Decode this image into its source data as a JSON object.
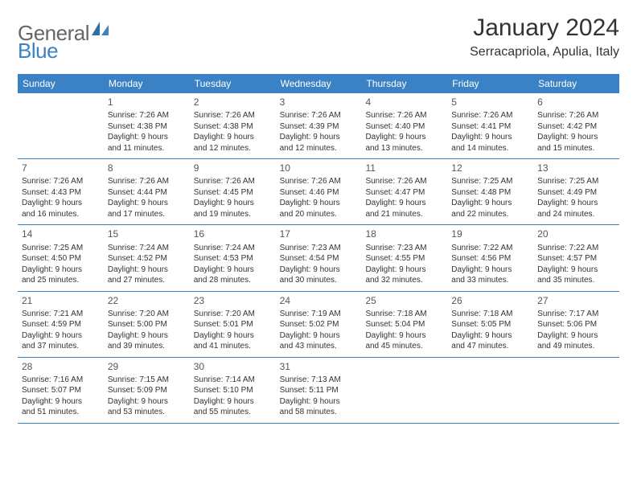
{
  "logo": {
    "text1": "General",
    "text2": "Blue"
  },
  "title": "January 2024",
  "location": "Serracapriola, Apulia, Italy",
  "colors": {
    "header_bg": "#3b82c4",
    "header_text": "#ffffff",
    "body_text": "#333333",
    "logo_gray": "#666666",
    "logo_blue": "#3b82c4",
    "border": "#3b82c4",
    "background": "#ffffff"
  },
  "weekdays": [
    "Sunday",
    "Monday",
    "Tuesday",
    "Wednesday",
    "Thursday",
    "Friday",
    "Saturday"
  ],
  "weeks": [
    [
      {
        "n": "",
        "l1": "",
        "l2": "",
        "l3": "",
        "l4": ""
      },
      {
        "n": "1",
        "l1": "Sunrise: 7:26 AM",
        "l2": "Sunset: 4:38 PM",
        "l3": "Daylight: 9 hours",
        "l4": "and 11 minutes."
      },
      {
        "n": "2",
        "l1": "Sunrise: 7:26 AM",
        "l2": "Sunset: 4:38 PM",
        "l3": "Daylight: 9 hours",
        "l4": "and 12 minutes."
      },
      {
        "n": "3",
        "l1": "Sunrise: 7:26 AM",
        "l2": "Sunset: 4:39 PM",
        "l3": "Daylight: 9 hours",
        "l4": "and 12 minutes."
      },
      {
        "n": "4",
        "l1": "Sunrise: 7:26 AM",
        "l2": "Sunset: 4:40 PM",
        "l3": "Daylight: 9 hours",
        "l4": "and 13 minutes."
      },
      {
        "n": "5",
        "l1": "Sunrise: 7:26 AM",
        "l2": "Sunset: 4:41 PM",
        "l3": "Daylight: 9 hours",
        "l4": "and 14 minutes."
      },
      {
        "n": "6",
        "l1": "Sunrise: 7:26 AM",
        "l2": "Sunset: 4:42 PM",
        "l3": "Daylight: 9 hours",
        "l4": "and 15 minutes."
      }
    ],
    [
      {
        "n": "7",
        "l1": "Sunrise: 7:26 AM",
        "l2": "Sunset: 4:43 PM",
        "l3": "Daylight: 9 hours",
        "l4": "and 16 minutes."
      },
      {
        "n": "8",
        "l1": "Sunrise: 7:26 AM",
        "l2": "Sunset: 4:44 PM",
        "l3": "Daylight: 9 hours",
        "l4": "and 17 minutes."
      },
      {
        "n": "9",
        "l1": "Sunrise: 7:26 AM",
        "l2": "Sunset: 4:45 PM",
        "l3": "Daylight: 9 hours",
        "l4": "and 19 minutes."
      },
      {
        "n": "10",
        "l1": "Sunrise: 7:26 AM",
        "l2": "Sunset: 4:46 PM",
        "l3": "Daylight: 9 hours",
        "l4": "and 20 minutes."
      },
      {
        "n": "11",
        "l1": "Sunrise: 7:26 AM",
        "l2": "Sunset: 4:47 PM",
        "l3": "Daylight: 9 hours",
        "l4": "and 21 minutes."
      },
      {
        "n": "12",
        "l1": "Sunrise: 7:25 AM",
        "l2": "Sunset: 4:48 PM",
        "l3": "Daylight: 9 hours",
        "l4": "and 22 minutes."
      },
      {
        "n": "13",
        "l1": "Sunrise: 7:25 AM",
        "l2": "Sunset: 4:49 PM",
        "l3": "Daylight: 9 hours",
        "l4": "and 24 minutes."
      }
    ],
    [
      {
        "n": "14",
        "l1": "Sunrise: 7:25 AM",
        "l2": "Sunset: 4:50 PM",
        "l3": "Daylight: 9 hours",
        "l4": "and 25 minutes."
      },
      {
        "n": "15",
        "l1": "Sunrise: 7:24 AM",
        "l2": "Sunset: 4:52 PM",
        "l3": "Daylight: 9 hours",
        "l4": "and 27 minutes."
      },
      {
        "n": "16",
        "l1": "Sunrise: 7:24 AM",
        "l2": "Sunset: 4:53 PM",
        "l3": "Daylight: 9 hours",
        "l4": "and 28 minutes."
      },
      {
        "n": "17",
        "l1": "Sunrise: 7:23 AM",
        "l2": "Sunset: 4:54 PM",
        "l3": "Daylight: 9 hours",
        "l4": "and 30 minutes."
      },
      {
        "n": "18",
        "l1": "Sunrise: 7:23 AM",
        "l2": "Sunset: 4:55 PM",
        "l3": "Daylight: 9 hours",
        "l4": "and 32 minutes."
      },
      {
        "n": "19",
        "l1": "Sunrise: 7:22 AM",
        "l2": "Sunset: 4:56 PM",
        "l3": "Daylight: 9 hours",
        "l4": "and 33 minutes."
      },
      {
        "n": "20",
        "l1": "Sunrise: 7:22 AM",
        "l2": "Sunset: 4:57 PM",
        "l3": "Daylight: 9 hours",
        "l4": "and 35 minutes."
      }
    ],
    [
      {
        "n": "21",
        "l1": "Sunrise: 7:21 AM",
        "l2": "Sunset: 4:59 PM",
        "l3": "Daylight: 9 hours",
        "l4": "and 37 minutes."
      },
      {
        "n": "22",
        "l1": "Sunrise: 7:20 AM",
        "l2": "Sunset: 5:00 PM",
        "l3": "Daylight: 9 hours",
        "l4": "and 39 minutes."
      },
      {
        "n": "23",
        "l1": "Sunrise: 7:20 AM",
        "l2": "Sunset: 5:01 PM",
        "l3": "Daylight: 9 hours",
        "l4": "and 41 minutes."
      },
      {
        "n": "24",
        "l1": "Sunrise: 7:19 AM",
        "l2": "Sunset: 5:02 PM",
        "l3": "Daylight: 9 hours",
        "l4": "and 43 minutes."
      },
      {
        "n": "25",
        "l1": "Sunrise: 7:18 AM",
        "l2": "Sunset: 5:04 PM",
        "l3": "Daylight: 9 hours",
        "l4": "and 45 minutes."
      },
      {
        "n": "26",
        "l1": "Sunrise: 7:18 AM",
        "l2": "Sunset: 5:05 PM",
        "l3": "Daylight: 9 hours",
        "l4": "and 47 minutes."
      },
      {
        "n": "27",
        "l1": "Sunrise: 7:17 AM",
        "l2": "Sunset: 5:06 PM",
        "l3": "Daylight: 9 hours",
        "l4": "and 49 minutes."
      }
    ],
    [
      {
        "n": "28",
        "l1": "Sunrise: 7:16 AM",
        "l2": "Sunset: 5:07 PM",
        "l3": "Daylight: 9 hours",
        "l4": "and 51 minutes."
      },
      {
        "n": "29",
        "l1": "Sunrise: 7:15 AM",
        "l2": "Sunset: 5:09 PM",
        "l3": "Daylight: 9 hours",
        "l4": "and 53 minutes."
      },
      {
        "n": "30",
        "l1": "Sunrise: 7:14 AM",
        "l2": "Sunset: 5:10 PM",
        "l3": "Daylight: 9 hours",
        "l4": "and 55 minutes."
      },
      {
        "n": "31",
        "l1": "Sunrise: 7:13 AM",
        "l2": "Sunset: 5:11 PM",
        "l3": "Daylight: 9 hours",
        "l4": "and 58 minutes."
      },
      {
        "n": "",
        "l1": "",
        "l2": "",
        "l3": "",
        "l4": ""
      },
      {
        "n": "",
        "l1": "",
        "l2": "",
        "l3": "",
        "l4": ""
      },
      {
        "n": "",
        "l1": "",
        "l2": "",
        "l3": "",
        "l4": ""
      }
    ]
  ]
}
